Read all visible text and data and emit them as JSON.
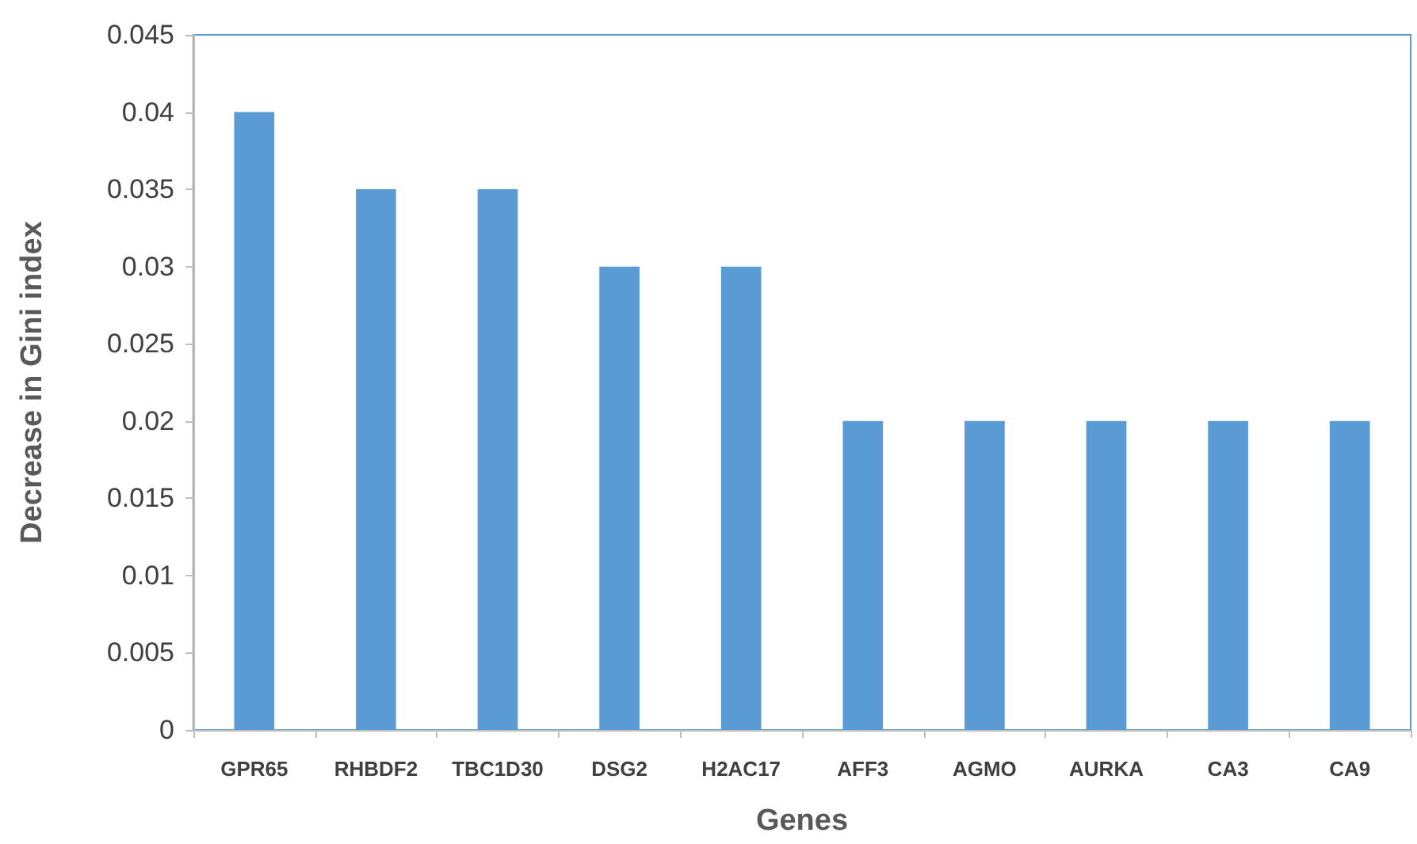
{
  "chart_data": {
    "type": "bar",
    "xlabel": "Genes",
    "ylabel": "Decrease in Gini index",
    "categories": [
      "GPR65",
      "RHBDF2",
      "TBC1D30",
      "DSG2",
      "H2AC17",
      "AFF3",
      "AGMO",
      "AURKA",
      "CA3",
      "CA9"
    ],
    "values": [
      0.04,
      0.035,
      0.035,
      0.03,
      0.03,
      0.02,
      0.02,
      0.02,
      0.02,
      0.02
    ],
    "color": "#5b9bd5",
    "ylim": [
      0,
      0.045
    ],
    "yticks": [
      0,
      0.005,
      0.01,
      0.015,
      0.02,
      0.025,
      0.03,
      0.035,
      0.04,
      0.045
    ],
    "grid": false
  }
}
